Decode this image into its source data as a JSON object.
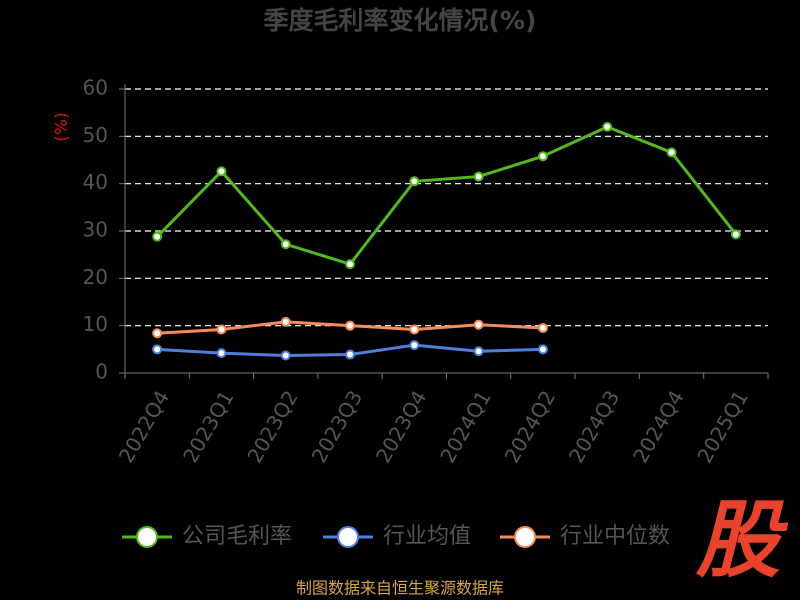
{
  "chart_data": {
    "type": "line",
    "title": "季度毛利率变化情况(%)",
    "y_label": "(%)",
    "categories": [
      "2022Q4",
      "2023Q1",
      "2023Q2",
      "2023Q3",
      "2023Q4",
      "2024Q1",
      "2024Q2",
      "2024Q3",
      "2024Q4",
      "2025Q1"
    ],
    "series": [
      {
        "name": "公司毛利率",
        "color": "#52b81e",
        "values": [
          28.8,
          42.6,
          27.2,
          23.0,
          40.5,
          41.5,
          45.8,
          52.0,
          46.6,
          29.3
        ]
      },
      {
        "name": "行业均值",
        "color": "#4f7fdc",
        "values": [
          5.0,
          4.2,
          3.7,
          3.9,
          5.9,
          4.6,
          5.0,
          null,
          null,
          null
        ]
      },
      {
        "name": "行业中位数",
        "color": "#f58c5a",
        "values": [
          8.4,
          9.2,
          10.8,
          10.0,
          9.2,
          10.2,
          9.5,
          null,
          null,
          null
        ]
      }
    ],
    "ylim": [
      0,
      60
    ],
    "yticks": [
      0,
      10,
      20,
      30,
      40,
      50,
      60
    ],
    "grid": true,
    "footer": "制图数据来自恒生聚源数据库",
    "watermark": "股"
  }
}
